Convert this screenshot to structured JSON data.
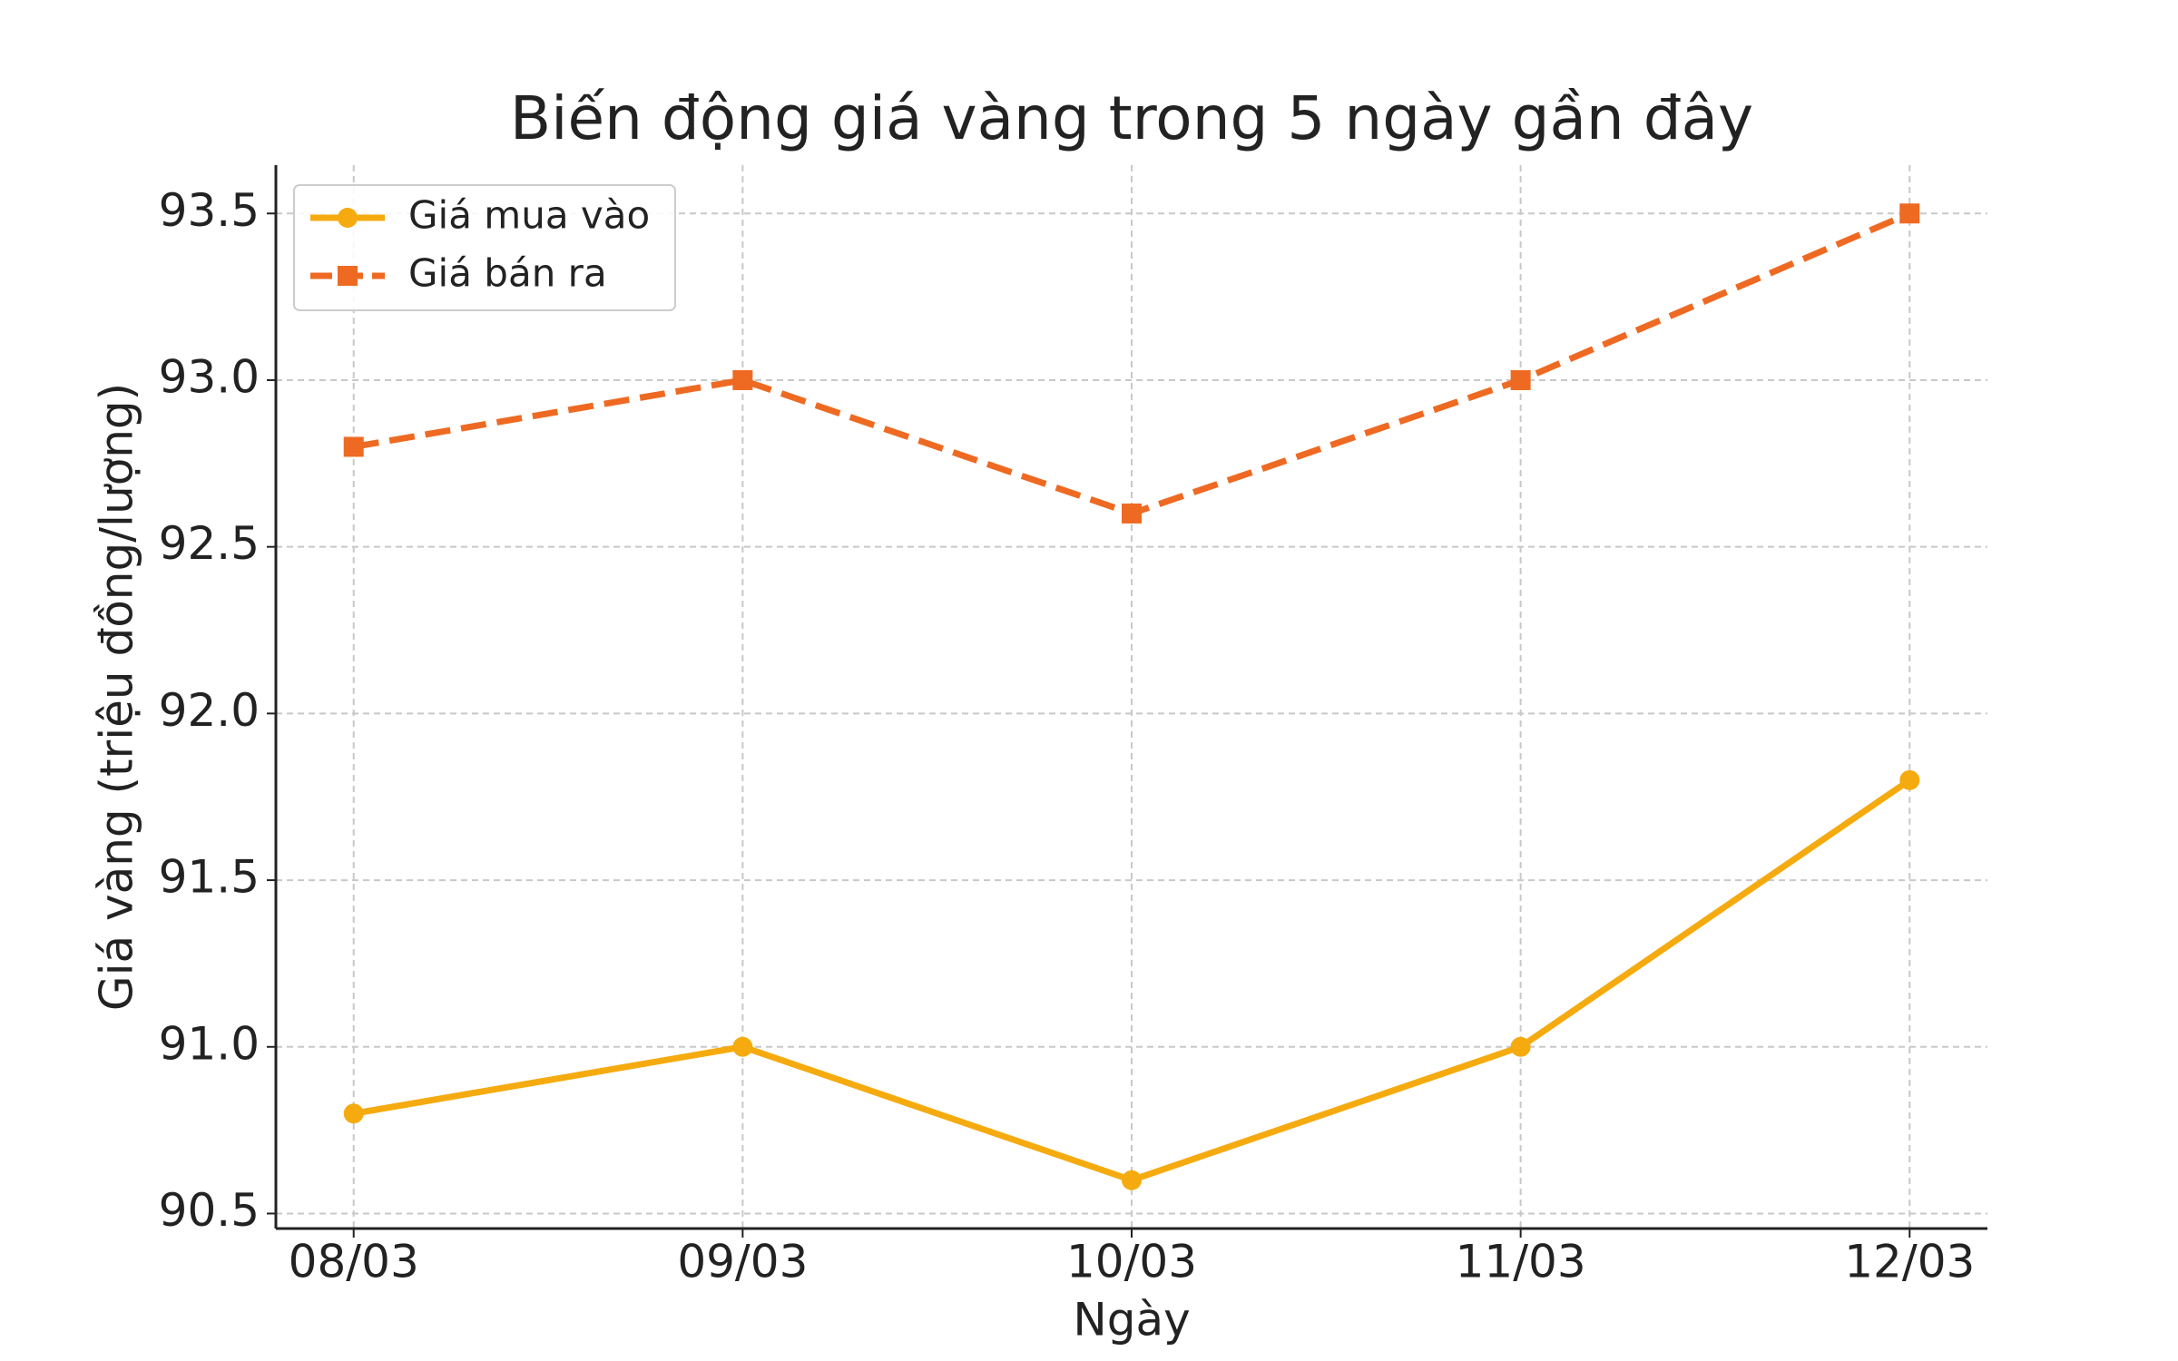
{
  "chart_data": {
    "type": "line",
    "title": "Biến động giá vàng trong 5 ngày gần đây",
    "xlabel": "Ngày",
    "ylabel": "Giá vàng (triệu đồng/lượng)",
    "categories": [
      "08/03",
      "09/03",
      "10/03",
      "11/03",
      "12/03"
    ],
    "series": [
      {
        "name": "Giá mua vào",
        "color": "#f5ab0f",
        "linestyle": "solid",
        "marker": "circle",
        "values": [
          90.8,
          91.0,
          90.6,
          91.0,
          91.8
        ]
      },
      {
        "name": "Giá bán ra",
        "color": "#ee6a22",
        "linestyle": "dashed",
        "marker": "square",
        "values": [
          92.8,
          93.0,
          92.6,
          93.0,
          93.5
        ]
      }
    ],
    "ylim": [
      90.455,
      93.645
    ],
    "yticks": [
      90.5,
      {
        "value": 91,
        "label": "91.0"
      },
      91.5,
      {
        "value": 92,
        "label": "92.0"
      },
      92.5,
      {
        "value": 93,
        "label": "93.0"
      },
      93.5
    ],
    "grid": true,
    "legend": "upper left"
  }
}
